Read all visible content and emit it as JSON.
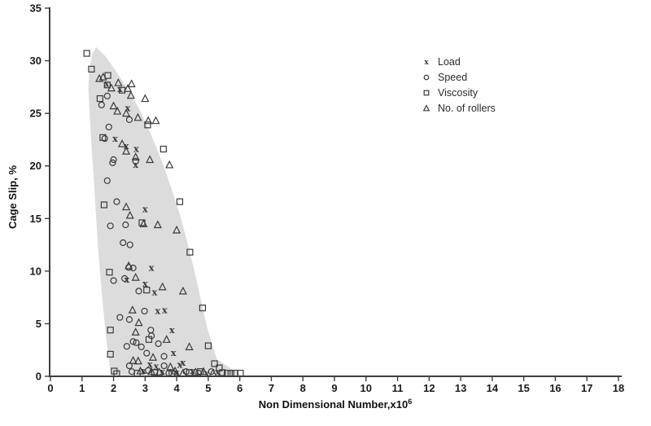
{
  "figure": {
    "background": "#ffffff",
    "envelope_color": "#dcdcdc",
    "marker_color": "#3a3a3a",
    "axis_color": "#3f3f3f",
    "text_color": "#1a1a1a"
  },
  "chart_data": {
    "type": "scatter",
    "title": "",
    "xlabel": "Non Dimensional Number,x10",
    "xlabel_superscript": "6",
    "ylabel": "Cage Slip, %",
    "xlim": [
      0,
      18
    ],
    "ylim": [
      0,
      35
    ],
    "x_ticks": [
      0,
      1,
      2,
      3,
      4,
      5,
      6,
      7,
      8,
      9,
      10,
      11,
      12,
      13,
      14,
      15,
      16,
      17,
      18
    ],
    "y_ticks": [
      0,
      5,
      10,
      15,
      20,
      25,
      30,
      35
    ],
    "grid": false,
    "legend_position": "upper-center",
    "series": [
      {
        "name": "Load",
        "marker": "x",
        "points": [
          [
            1.78,
            27.8
          ],
          [
            2.2,
            27.3
          ],
          [
            2.45,
            25.5
          ],
          [
            2.05,
            22.6
          ],
          [
            2.4,
            21.9
          ],
          [
            2.72,
            21.6
          ],
          [
            2.7,
            20.1
          ],
          [
            3.0,
            15.9
          ],
          [
            3.2,
            10.3
          ],
          [
            2.42,
            9.2
          ],
          [
            3.0,
            8.8
          ],
          [
            3.3,
            8.0
          ],
          [
            3.4,
            6.2
          ],
          [
            3.62,
            6.3
          ],
          [
            3.85,
            4.4
          ],
          [
            3.9,
            2.2
          ],
          [
            4.2,
            1.3
          ],
          [
            4.1,
            1.1
          ],
          [
            3.15,
            1.15
          ],
          [
            3.35,
            0.95
          ],
          [
            2.95,
            0.5
          ],
          [
            3.55,
            0.45
          ],
          [
            4.0,
            0.35
          ],
          [
            4.5,
            0.5
          ],
          [
            4.95,
            0.3
          ],
          [
            5.3,
            0.4
          ]
        ]
      },
      {
        "name": "Speed",
        "marker": "circle",
        "points": [
          [
            1.8,
            26.65
          ],
          [
            1.62,
            25.8
          ],
          [
            2.5,
            24.4
          ],
          [
            1.85,
            23.7
          ],
          [
            1.72,
            22.6
          ],
          [
            2.0,
            20.6
          ],
          [
            2.7,
            20.45
          ],
          [
            1.97,
            20.3
          ],
          [
            1.8,
            18.6
          ],
          [
            2.1,
            16.6
          ],
          [
            1.9,
            14.3
          ],
          [
            2.38,
            14.4
          ],
          [
            2.3,
            12.7
          ],
          [
            2.52,
            12.5
          ],
          [
            2.48,
            10.35
          ],
          [
            2.62,
            10.3
          ],
          [
            2.0,
            9.1
          ],
          [
            2.35,
            9.3
          ],
          [
            2.8,
            8.1
          ],
          [
            2.98,
            6.2
          ],
          [
            2.2,
            5.6
          ],
          [
            2.5,
            5.4
          ],
          [
            3.18,
            4.4
          ],
          [
            3.2,
            3.85
          ],
          [
            2.62,
            3.3
          ],
          [
            3.42,
            3.1
          ],
          [
            2.42,
            2.85
          ],
          [
            2.72,
            3.2
          ],
          [
            2.88,
            2.8
          ],
          [
            3.05,
            2.2
          ],
          [
            3.6,
            1.9
          ],
          [
            2.5,
            1.0
          ],
          [
            3.6,
            1.0
          ],
          [
            2.58,
            0.45
          ],
          [
            3.1,
            0.55
          ],
          [
            3.75,
            0.3
          ],
          [
            4.3,
            0.45
          ],
          [
            4.7,
            0.3
          ],
          [
            5.1,
            0.45
          ]
        ]
      },
      {
        "name": "Viscosity",
        "marker": "square",
        "points": [
          [
            1.15,
            30.7
          ],
          [
            1.3,
            29.2
          ],
          [
            1.82,
            28.6
          ],
          [
            1.8,
            27.7
          ],
          [
            2.27,
            27.2
          ],
          [
            1.57,
            26.4
          ],
          [
            3.08,
            23.9
          ],
          [
            1.66,
            22.7
          ],
          [
            3.58,
            21.6
          ],
          [
            1.7,
            16.3
          ],
          [
            4.1,
            16.6
          ],
          [
            2.9,
            14.6
          ],
          [
            4.42,
            11.8
          ],
          [
            1.87,
            9.9
          ],
          [
            3.05,
            8.2
          ],
          [
            4.82,
            6.5
          ],
          [
            1.9,
            4.4
          ],
          [
            3.12,
            3.5
          ],
          [
            5.0,
            2.9
          ],
          [
            1.9,
            2.1
          ],
          [
            5.2,
            1.2
          ],
          [
            5.35,
            0.8
          ],
          [
            2.02,
            0.5
          ],
          [
            2.1,
            0.25
          ],
          [
            2.75,
            0.3
          ],
          [
            3.3,
            0.35
          ],
          [
            3.85,
            0.25
          ],
          [
            4.4,
            0.35
          ],
          [
            4.75,
            0.45
          ],
          [
            5.45,
            0.35
          ],
          [
            5.6,
            0.3
          ],
          [
            5.72,
            0.3
          ],
          [
            5.85,
            0.3
          ],
          [
            6.02,
            0.3
          ]
        ]
      },
      {
        "name": "No. of rollers",
        "marker": "triangle",
        "points": [
          [
            1.55,
            28.3
          ],
          [
            1.67,
            28.45
          ],
          [
            1.93,
            27.4
          ],
          [
            2.15,
            27.9
          ],
          [
            2.57,
            27.8
          ],
          [
            2.45,
            27.35
          ],
          [
            2.55,
            26.7
          ],
          [
            3.0,
            26.4
          ],
          [
            2.0,
            25.7
          ],
          [
            2.12,
            25.2
          ],
          [
            2.4,
            25.0
          ],
          [
            2.77,
            24.6
          ],
          [
            3.1,
            24.3
          ],
          [
            3.34,
            24.3
          ],
          [
            2.27,
            22.1
          ],
          [
            2.4,
            21.4
          ],
          [
            2.7,
            20.85
          ],
          [
            3.15,
            20.6
          ],
          [
            3.77,
            20.1
          ],
          [
            2.4,
            16.1
          ],
          [
            2.52,
            15.3
          ],
          [
            2.95,
            14.5
          ],
          [
            3.4,
            14.4
          ],
          [
            4.0,
            13.9
          ],
          [
            2.48,
            10.5
          ],
          [
            2.7,
            9.4
          ],
          [
            3.55,
            8.5
          ],
          [
            4.2,
            8.1
          ],
          [
            2.6,
            6.3
          ],
          [
            2.8,
            5.1
          ],
          [
            2.7,
            4.2
          ],
          [
            3.68,
            3.5
          ],
          [
            4.4,
            2.8
          ],
          [
            2.62,
            1.5
          ],
          [
            2.78,
            1.45
          ],
          [
            3.25,
            1.8
          ],
          [
            3.8,
            0.9
          ],
          [
            2.85,
            0.5
          ],
          [
            3.2,
            0.45
          ],
          [
            3.45,
            0.4
          ],
          [
            3.95,
            0.5
          ],
          [
            4.2,
            0.3
          ],
          [
            4.6,
            0.4
          ],
          [
            4.85,
            0.45
          ],
          [
            5.15,
            0.3
          ]
        ]
      }
    ],
    "envelope": [
      [
        1.45,
        31.3
      ],
      [
        1.75,
        30.4
      ],
      [
        2.1,
        28.9
      ],
      [
        2.5,
        27.1
      ],
      [
        2.85,
        25.2
      ],
      [
        3.1,
        23.6
      ],
      [
        3.35,
        21.8
      ],
      [
        3.6,
        19.9
      ],
      [
        3.85,
        17.7
      ],
      [
        4.1,
        15.4
      ],
      [
        4.35,
        12.6
      ],
      [
        4.55,
        10.2
      ],
      [
        4.75,
        7.5
      ],
      [
        4.95,
        4.8
      ],
      [
        5.15,
        2.8
      ],
      [
        5.28,
        1.6
      ],
      [
        6.05,
        0.12
      ],
      [
        1.92,
        0.12
      ],
      [
        1.85,
        1.6
      ],
      [
        1.75,
        4.0
      ],
      [
        1.67,
        6.5
      ],
      [
        1.58,
        9.5
      ],
      [
        1.5,
        12.5
      ],
      [
        1.44,
        15.5
      ],
      [
        1.38,
        18.5
      ],
      [
        1.32,
        21.0
      ],
      [
        1.27,
        23.5
      ],
      [
        1.23,
        25.5
      ],
      [
        1.2,
        27.5
      ],
      [
        1.24,
        29.3
      ],
      [
        1.32,
        30.6
      ]
    ]
  }
}
